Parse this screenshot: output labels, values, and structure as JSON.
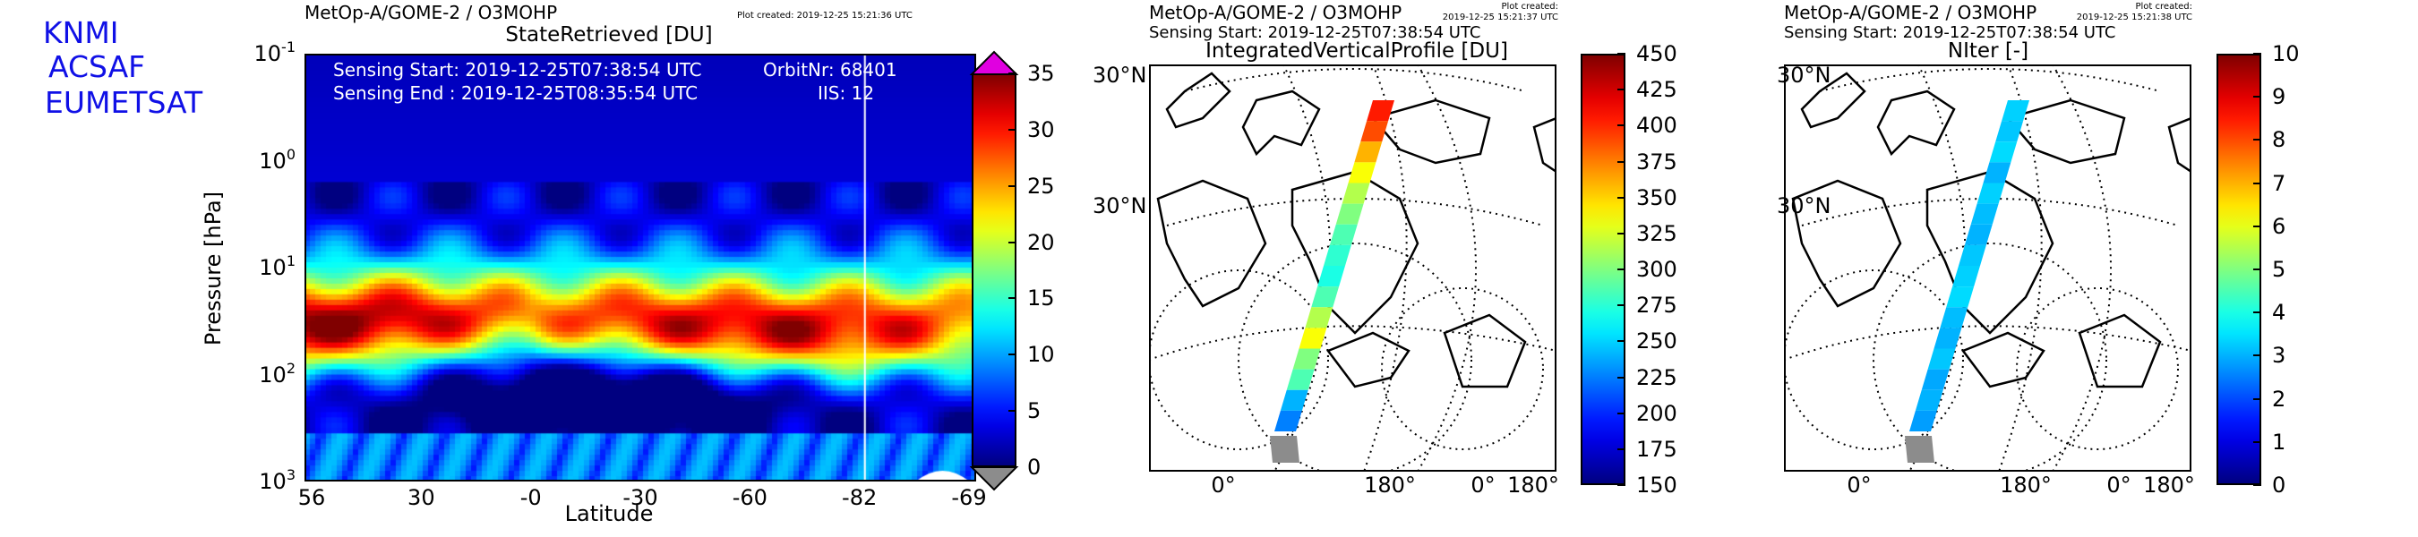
{
  "branding": {
    "line1": "KNMI",
    "line2": "ACSAF",
    "line3": "EUMETSAT"
  },
  "colors": {
    "brand": "#1010e6",
    "under_color": "#8c8c8c",
    "over_color": "#e000e0",
    "map_gray": "#8c8c8c"
  },
  "colormap": "jet",
  "chart_data": [
    {
      "type": "heatmap",
      "header_title": "MetOp-A/GOME-2 / O3MOHP",
      "plot_created": "Plot created: 2019-12-25 15:21:36 UTC",
      "title": "StateRetrieved [DU]",
      "xlabel": "Latitude",
      "ylabel": "Pressure [hPa]",
      "x_ticks": [
        "56",
        "30",
        "-0",
        "-30",
        "-60",
        "-82",
        "-69"
      ],
      "x_tick_values": [
        56,
        30,
        0,
        -30,
        -60,
        -82,
        -69
      ],
      "y_scale": "log",
      "y_ticks": [
        {
          "base": "10",
          "exp": "-1"
        },
        {
          "base": "10",
          "exp": "0"
        },
        {
          "base": "10",
          "exp": "1"
        },
        {
          "base": "10",
          "exp": "2"
        },
        {
          "base": "10",
          "exp": "3"
        }
      ],
      "ylim": [
        1000,
        0.1
      ],
      "sensing_start": "Sensing Start: 2019-12-25T07:38:54 UTC",
      "sensing_end": "Sensing End  : 2019-12-25T08:35:54 UTC",
      "orbit": "OrbitNr: 68401",
      "iis": "IIS: 12",
      "colorbar": {
        "min": 0,
        "max": 35,
        "ticks": [
          "35",
          "30",
          "25",
          "20",
          "15",
          "10",
          "5",
          "0"
        ],
        "extend": "both"
      }
    },
    {
      "type": "map",
      "header_title": "MetOp-A/GOME-2 / O3MOHP",
      "plot_created_label": "Plot created:",
      "plot_created_time": "2019-12-25 15:21:37 UTC",
      "sensing_start": "Sensing Start: 2019-12-25T07:38:54 UTC",
      "title": "IntegratedVerticalProfile [DU]",
      "lat_labels": [
        "30°N",
        "30°N"
      ],
      "lon_labels": [
        "0°",
        "180°",
        "0°",
        "180°"
      ],
      "colorbar": {
        "min": 150,
        "max": 450,
        "ticks": [
          "450",
          "425",
          "400",
          "375",
          "350",
          "325",
          "300",
          "275",
          "250",
          "225",
          "200",
          "175",
          "150"
        ]
      }
    },
    {
      "type": "map",
      "header_title": "MetOp-A/GOME-2 / O3MOHP",
      "plot_created_label": "Plot created:",
      "plot_created_time": "2019-12-25 15:21:38 UTC",
      "sensing_start": "Sensing Start: 2019-12-25T07:38:54 UTC",
      "title": "NIter [-]",
      "lat_labels": [
        "30°N",
        "30°N"
      ],
      "lon_labels": [
        "0°",
        "180°",
        "0°",
        "180°"
      ],
      "colorbar": {
        "min": 0,
        "max": 10,
        "ticks": [
          "10",
          "9",
          "8",
          "7",
          "6",
          "5",
          "4",
          "3",
          "2",
          "1",
          "0"
        ]
      }
    }
  ]
}
